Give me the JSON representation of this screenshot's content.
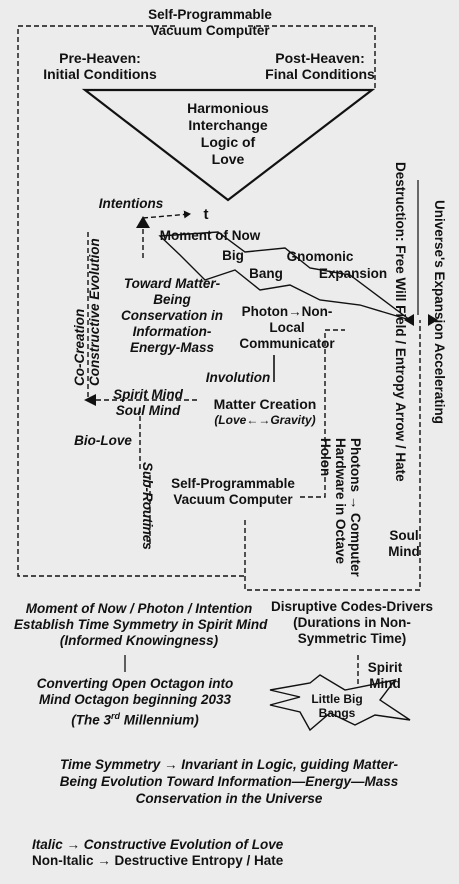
{
  "top_box": {
    "line1": "Self-Programmable",
    "line2": "Vacuum Computer"
  },
  "pre_heaven": {
    "line1": "Pre-Heaven:",
    "line2": "Initial Conditions"
  },
  "post_heaven": {
    "line1": "Post-Heaven:",
    "line2": "Final Conditions"
  },
  "triangle": {
    "line1": "Harmonious",
    "line2": "Interchange",
    "line3": "Logic of",
    "line4": "Love"
  },
  "intentions": "Intentions",
  "t_label": "t",
  "moment_of_now": "Moment of Now",
  "big": "Big",
  "bang": "Bang",
  "gnomonic": "Gnomonic",
  "expansion": "Expansion",
  "co_creation": {
    "line1": "Co-Creation",
    "line2": "Constructive Evolution"
  },
  "toward_matter": {
    "line1": "Toward Matter-",
    "line2": "Being",
    "line3": "Conservation in",
    "line4": "Information-",
    "line5": "Energy-Mass"
  },
  "photon": {
    "line1": "Photon",
    "arrow": "→",
    "line1b": "Non-",
    "line2": "Local",
    "line3": "Communicator"
  },
  "involution": "Involution",
  "spirit_mind_left": "Spirit Mind",
  "soul_mind_left": "Soul Mind",
  "matter_creation": {
    "line1": "Matter Creation",
    "line2": "(Love←→Gravity)"
  },
  "bio_love": "Bio-Love",
  "sub_routines": "Sub-Routines",
  "mid_box": {
    "line1": "Self-Programmable",
    "line2": "Vacuum Computer"
  },
  "photons_vertical": {
    "line1": "Photons → Computer",
    "line2": "Hardware in Octave",
    "line3": "Holon"
  },
  "soul_mind_right": {
    "line1": "Soul",
    "line2": "Mind"
  },
  "destruction_vertical": "Destruction: Free Will Field / Entropy Arrow / Hate",
  "universe_vertical": "Universe's Expansion Accelerating",
  "moment_block": {
    "line1": "Moment of Now / Photon / Intention",
    "line2": "Establish Time Symmetry in Spirit Mind",
    "line3": "(Informed Knowingness)"
  },
  "octagon_block": {
    "line1": "Converting Open Octagon into",
    "line2": "Mind Octagon beginning 2033",
    "line3a": "(The 3",
    "sup": "rd",
    "line3b": " Millennium)"
  },
  "disruptive": {
    "line1": "Disruptive Codes-Drivers",
    "line2": "(Durations in Non-",
    "line3": "Symmetric Time)"
  },
  "spirit_mind_right": {
    "line1": "Spirit",
    "line2": "Mind"
  },
  "little_big_bangs": {
    "line1": "Little Big",
    "line2": "Bangs"
  },
  "symmetry": {
    "line1": "Time Symmetry → Invariant in Logic, guiding Matter-",
    "line2": "Being Evolution Toward Information—Energy—Mass",
    "line3": "Conservation in the Universe"
  },
  "legend": {
    "italic": "Italic → Constructive Evolution of Love",
    "nonitalic": "Non-Italic → Destructive Entropy / Hate"
  }
}
